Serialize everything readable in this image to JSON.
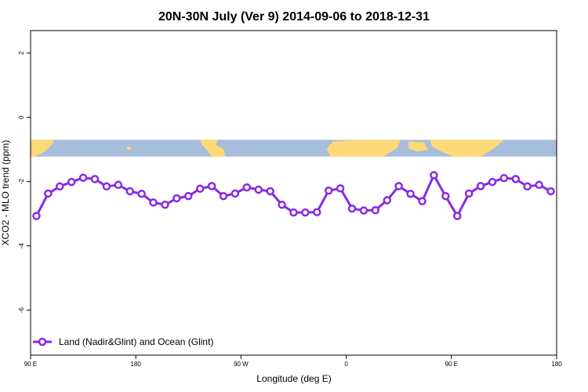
{
  "chart_data": {
    "type": "line",
    "title": "20N-30N July (Ver 9)   2014-09-06 to 2018-12-31",
    "xlabel": "Longitude (deg E)",
    "ylabel": "XCO2 - MLO trend (ppm)",
    "xlim": [
      -90,
      180
    ],
    "ylim": [
      -7.4,
      2.7
    ],
    "x_ticks": [
      {
        "value": -90,
        "label": "90 E"
      },
      {
        "value": -36,
        "label": "180"
      },
      {
        "value": 18,
        "label": "90 W"
      },
      {
        "value": 72,
        "label": "0"
      },
      {
        "value": 126,
        "label": "90 E"
      },
      {
        "value": 180,
        "label": "180"
      }
    ],
    "y_ticks": [
      {
        "value": 2,
        "label": "2"
      },
      {
        "value": 0,
        "label": "0"
      },
      {
        "value": -2,
        "label": "-2"
      },
      {
        "value": -4,
        "label": "-4"
      },
      {
        "value": -6,
        "label": "-6"
      }
    ],
    "map_strip": {
      "y_top": -0.7,
      "y_bottom": -1.22,
      "ocean_color": "#a6bddb",
      "land_color": "#fed976"
    },
    "legend": {
      "position": "bottom-left"
    },
    "series": [
      {
        "name": "Land (Nadir&Glint) and Ocean (Glint)",
        "color": "#8a2be2",
        "x": [
          -87,
          -81,
          -75,
          -69,
          -63,
          -57,
          -51,
          -45,
          -39,
          -33,
          -27,
          -21,
          -15,
          -9,
          -3,
          3,
          9,
          15,
          21,
          27,
          33,
          39,
          45,
          51,
          57,
          63,
          69,
          75,
          81,
          87,
          93,
          99,
          105,
          111,
          117,
          123,
          129,
          135,
          141,
          147,
          153,
          159,
          165,
          171,
          177
        ],
        "values": [
          -3.07,
          -2.37,
          -2.15,
          -2.01,
          -1.88,
          -1.92,
          -2.15,
          -2.1,
          -2.3,
          -2.38,
          -2.65,
          -2.72,
          -2.52,
          -2.45,
          -2.22,
          -2.14,
          -2.45,
          -2.37,
          -2.18,
          -2.25,
          -2.3,
          -2.72,
          -2.96,
          -2.96,
          -2.95,
          -2.28,
          -2.21,
          -2.84,
          -2.9,
          -2.89,
          -2.58,
          -2.14,
          -2.38,
          -2.61,
          -1.8,
          -2.45,
          -3.07,
          -2.37,
          -2.14,
          -2.01,
          -1.89,
          -1.92,
          -2.15,
          -2.1,
          -2.3
        ]
      }
    ]
  }
}
